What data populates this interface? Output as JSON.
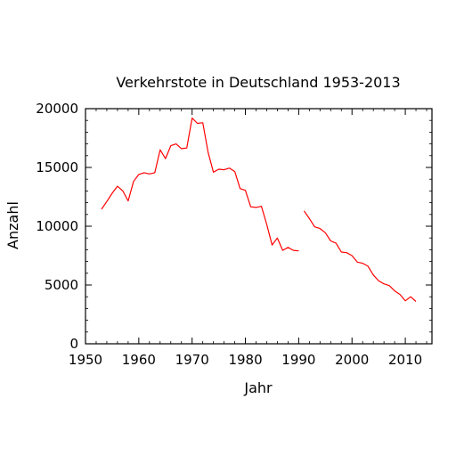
{
  "chart_data": {
    "type": "line",
    "title": "Verkehrstote in Deutschland 1953-2013",
    "xlabel": "Jahr",
    "ylabel": "Anzahl",
    "xlim": [
      1950,
      2015
    ],
    "ylim": [
      0,
      20000
    ],
    "xticks": [
      1950,
      1960,
      1970,
      1980,
      1990,
      2000,
      2010
    ],
    "yticks": [
      0,
      5000,
      10000,
      15000,
      20000
    ],
    "grid": false,
    "legend": "none",
    "line_color": "#ff0000",
    "series": [
      {
        "x": [
          1953,
          1954,
          1955,
          1956,
          1957,
          1958,
          1959,
          1960,
          1961,
          1962,
          1963,
          1964,
          1965,
          1966,
          1967,
          1968,
          1969,
          1970,
          1971,
          1972,
          1973,
          1974,
          1975,
          1976,
          1977,
          1978,
          1979,
          1980,
          1981,
          1982,
          1983,
          1984,
          1985,
          1986,
          1987,
          1988,
          1989,
          1990
        ],
        "y": [
          11450,
          12100,
          12800,
          13400,
          13000,
          12150,
          13800,
          14400,
          14550,
          14450,
          14550,
          16500,
          15750,
          16850,
          17000,
          16600,
          16650,
          19200,
          18750,
          18800,
          16300,
          14600,
          14850,
          14800,
          14950,
          14650,
          13200,
          13050,
          11650,
          11600,
          11700,
          10150,
          8400,
          9000,
          7950,
          8200,
          7950,
          7900
        ]
      },
      {
        "x": [
          1991,
          1992,
          1993,
          1994,
          1995,
          1996,
          1997,
          1998,
          1999,
          2000,
          2001,
          2002,
          2003,
          2004,
          2005,
          2006,
          2007,
          2008,
          2009,
          2010,
          2011,
          2012
        ],
        "y": [
          11300,
          10650,
          9950,
          9800,
          9450,
          8750,
          8550,
          7800,
          7750,
          7500,
          6950,
          6850,
          6600,
          5850,
          5350,
          5100,
          4950,
          4500,
          4200,
          3650,
          4000,
          3600
        ]
      }
    ]
  }
}
